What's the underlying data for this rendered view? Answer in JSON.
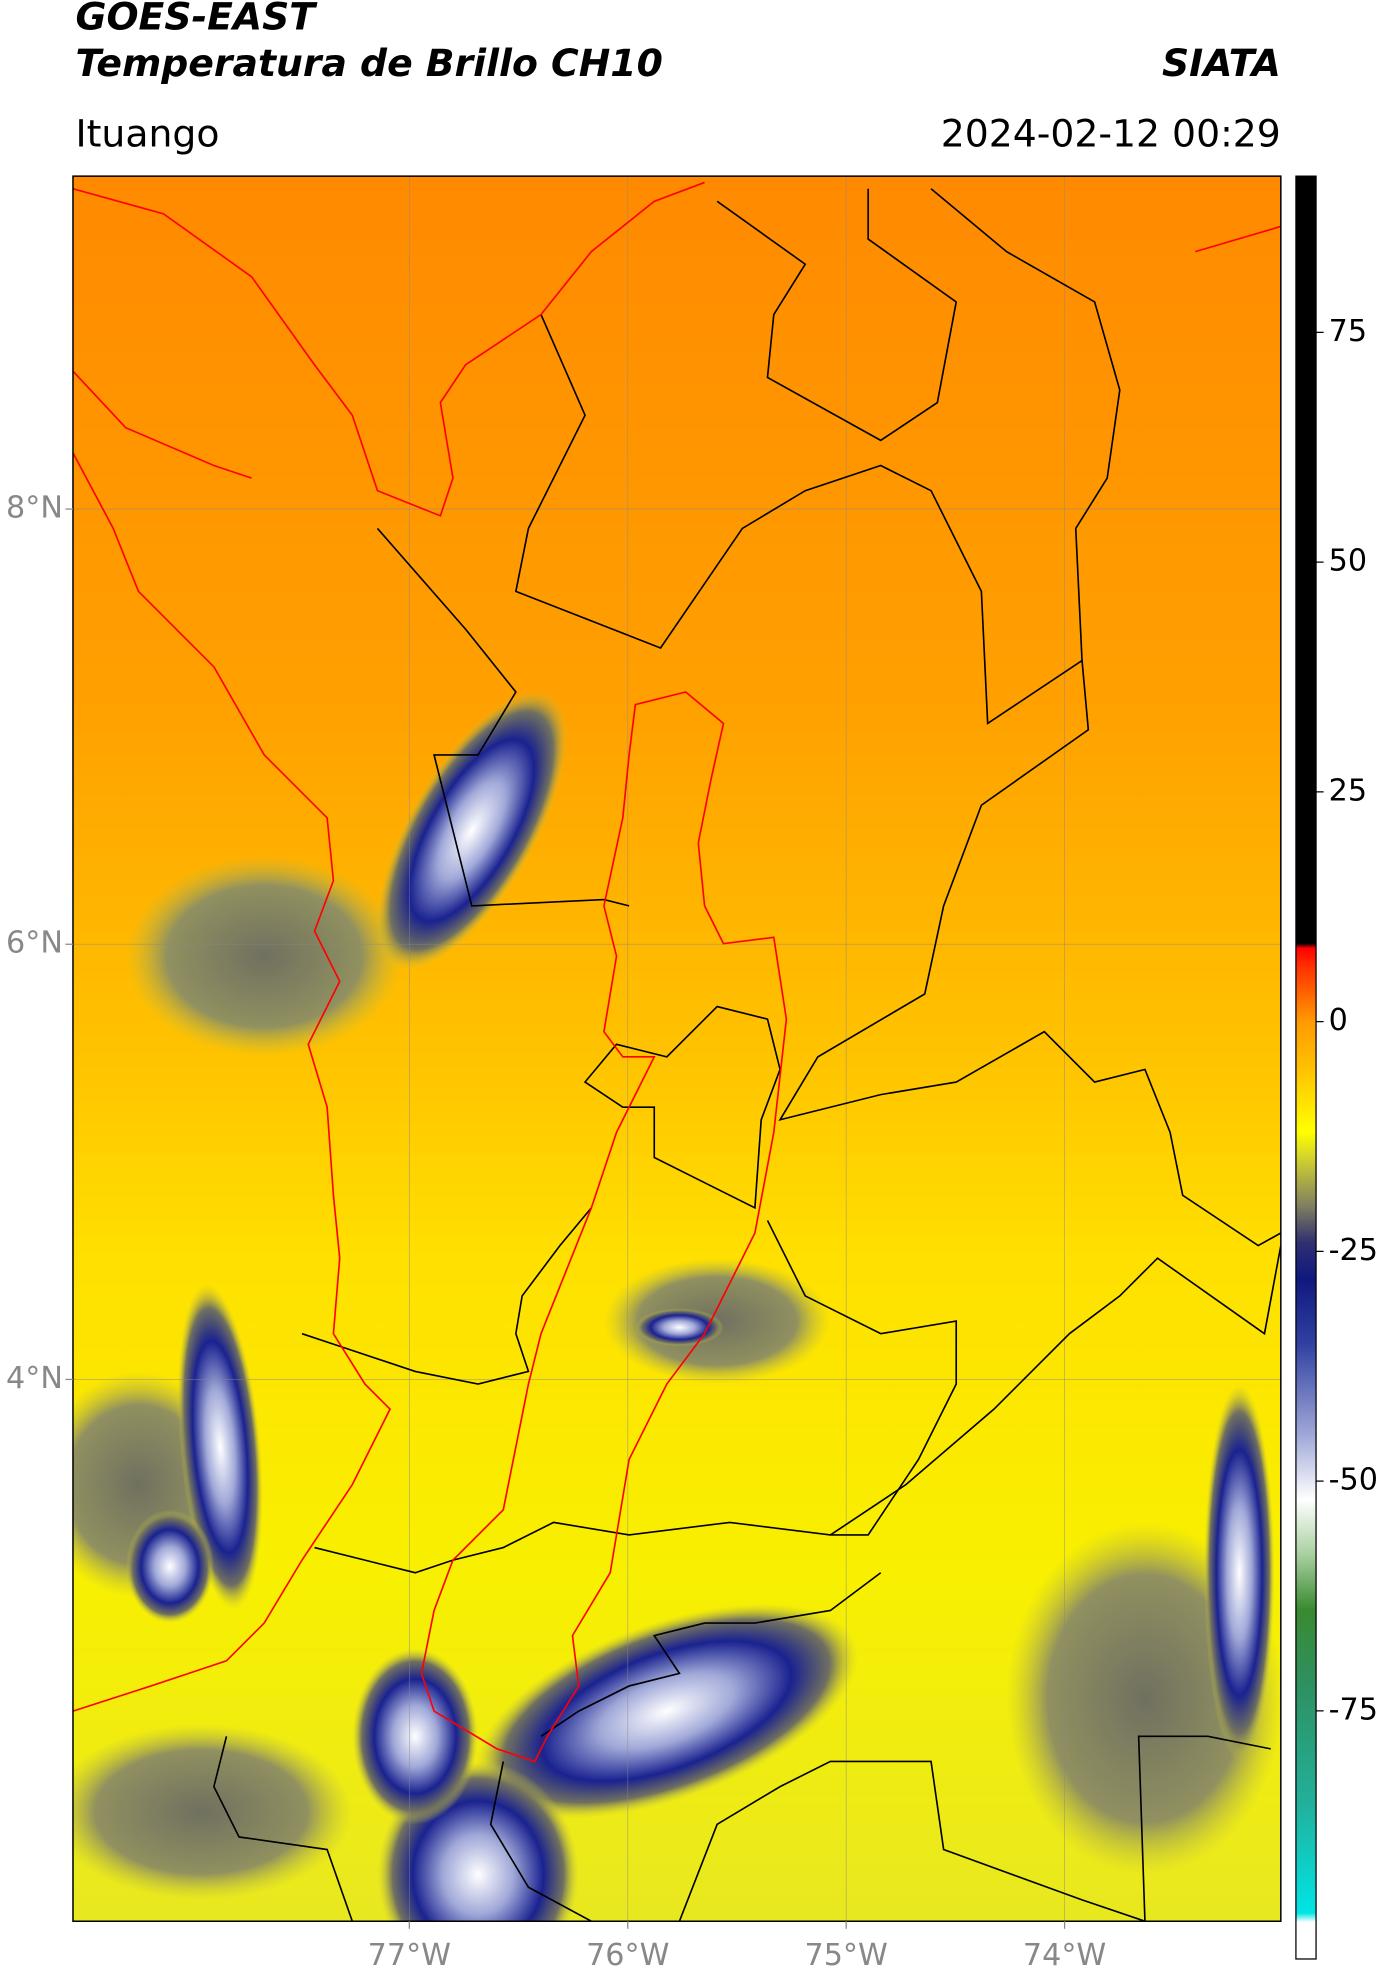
{
  "header": {
    "satellite": "GOES-EAST",
    "product": "Temperatura de Brillo CH10",
    "agency": "SIATA",
    "location": "Ituango",
    "datetime": "2024-02-12 00:29"
  },
  "map": {
    "xlim": [
      -78.54,
      -73.01
    ],
    "ylim": [
      1.51,
      9.53
    ],
    "grid": true,
    "xticks": [
      {
        "value": -77,
        "label": "77°W"
      },
      {
        "value": -76,
        "label": "76°W"
      },
      {
        "value": -75,
        "label": "75°W"
      },
      {
        "value": -74,
        "label": "74°W"
      }
    ],
    "yticks": [
      {
        "value": 8,
        "label": "8°N"
      },
      {
        "value": 6,
        "label": "6°N"
      },
      {
        "value": 4,
        "label": "4°N"
      }
    ]
  },
  "colorbar": {
    "ylim": [
      -102,
      92
    ],
    "yticks": [
      75,
      50,
      25,
      0,
      -25,
      -50,
      -75
    ],
    "colormap": [
      {
        "value": -102,
        "color": "#ffffff"
      },
      {
        "value": -98,
        "color": "#ffffff"
      },
      {
        "value": -97,
        "color": "#00e5e5"
      },
      {
        "value": -85,
        "color": "#22b09a"
      },
      {
        "value": -72,
        "color": "#2e9060"
      },
      {
        "value": -64,
        "color": "#3a8a30"
      },
      {
        "value": -58,
        "color": "#a8d0a0"
      },
      {
        "value": -52,
        "color": "#ffffff"
      },
      {
        "value": -45,
        "color": "#a0a8d8"
      },
      {
        "value": -35,
        "color": "#3040a0"
      },
      {
        "value": -28,
        "color": "#101880"
      },
      {
        "value": -24,
        "color": "#303070"
      },
      {
        "value": -20,
        "color": "#808060"
      },
      {
        "value": -15,
        "color": "#d0d030"
      },
      {
        "value": -12,
        "color": "#ffff00"
      },
      {
        "value": -5,
        "color": "#ffc000"
      },
      {
        "value": 0,
        "color": "#ff9a00"
      },
      {
        "value": 6,
        "color": "#ff3000"
      },
      {
        "value": 8,
        "color": "#ff0000"
      },
      {
        "value": 8.5,
        "color": "#000000"
      },
      {
        "value": 92,
        "color": "#000000"
      }
    ]
  }
}
